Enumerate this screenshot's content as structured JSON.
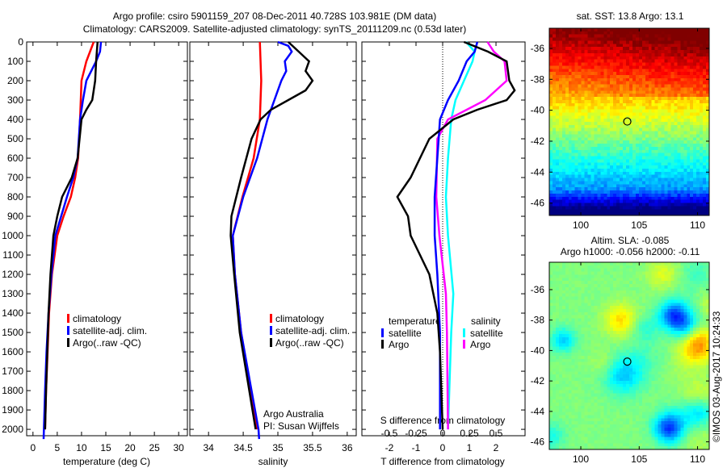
{
  "title_line1": "Argo profile: csiro 5901159_207 08-Dec-2011 40.728S 103.981E (DM data)",
  "title_line2": "Climatology: CARS2009. Satellite-adjusted climatology: synTS_20111209.nc (0.53d later)",
  "credit": "©IMOS 03-Aug-2017 10:24:33",
  "colors": {
    "climatology": "#ff0000",
    "satellite": "#0000ff",
    "argo": "#000000",
    "sal_satellite": "#00ffff",
    "sal_argo": "#ff00ff"
  },
  "chart_data": [
    {
      "type": "line",
      "title": "",
      "xlabel": "temperature (deg C)",
      "ylabel": "",
      "xlim": [
        -1.3,
        31.8
      ],
      "ylim": [
        0,
        2033
      ],
      "xticks": [
        0,
        5,
        10,
        15,
        20,
        25,
        30
      ],
      "yticks": [
        0,
        100,
        200,
        300,
        400,
        500,
        600,
        700,
        800,
        900,
        1000,
        1100,
        1200,
        1300,
        1400,
        1500,
        1600,
        1700,
        1800,
        1900,
        2000
      ],
      "legend": [
        "climatology",
        "satellite-adj. clim.",
        "Argo(..raw -QC)"
      ],
      "series": [
        {
          "name": "climatology",
          "depth": [
            0,
            100,
            200,
            400,
            600,
            700,
            800,
            900,
            1000,
            1200,
            1400,
            1600,
            1800,
            2000
          ],
          "values": [
            12.5,
            11,
            10,
            9.7,
            9.3,
            8.7,
            7.8,
            6.3,
            5,
            3.9,
            3.3,
            3.0,
            2.7,
            2.5
          ]
        },
        {
          "name": "satellite-adj. clim.",
          "depth": [
            0,
            50,
            100,
            200,
            300,
            400,
            600,
            700,
            800,
            900,
            1000,
            1200,
            1400,
            1600,
            1800,
            2050
          ],
          "values": [
            14,
            13.8,
            13,
            11,
            10.3,
            9.7,
            9.2,
            8.3,
            7,
            5.8,
            4.6,
            3.8,
            3.2,
            2.8,
            2.5,
            2.2
          ]
        },
        {
          "name": "Argo(..raw -QC)",
          "depth": [
            0,
            100,
            200,
            300,
            350,
            400,
            600,
            700,
            800,
            900,
            1000,
            1200,
            1400,
            1800,
            2000
          ],
          "values": [
            13.3,
            13,
            12.8,
            12.2,
            11,
            10,
            9.2,
            8,
            6,
            5,
            4.2,
            3.6,
            3.2,
            2.7,
            2.5
          ]
        }
      ]
    },
    {
      "type": "line",
      "xlabel": "salinity",
      "xlim": [
        33.73,
        36.13
      ],
      "ylim": [
        0,
        2033
      ],
      "xticks": [
        34,
        34.5,
        35,
        35.5,
        36
      ],
      "legend": [
        "climatology",
        "satellite-adj. clim.",
        "Argo(..raw -QC)"
      ],
      "annotation": [
        "Argo Australia",
        "PI: Susan Wijffels"
      ],
      "series": [
        {
          "name": "climatology",
          "depth": [
            0,
            200,
            400,
            600,
            800,
            1000,
            1200,
            1500,
            2000
          ],
          "values": [
            34.74,
            34.76,
            34.74,
            34.65,
            34.49,
            34.35,
            34.38,
            34.47,
            34.7
          ]
        },
        {
          "name": "satellite-adj. clim.",
          "depth": [
            0,
            20,
            50,
            100,
            150,
            200,
            300,
            400,
            600,
            800,
            1000,
            1200,
            1500,
            2000,
            2050
          ],
          "values": [
            35.0,
            35.15,
            35.2,
            35.1,
            35.12,
            35.05,
            34.95,
            34.85,
            34.7,
            34.5,
            34.35,
            34.38,
            34.47,
            34.72,
            34.73
          ]
        },
        {
          "name": "Argo(..raw -QC)",
          "depth": [
            0,
            50,
            100,
            150,
            200,
            250,
            300,
            350,
            400,
            500,
            700,
            900,
            1000,
            1200,
            1500,
            2000
          ],
          "values": [
            35.15,
            35.3,
            35.45,
            35.4,
            35.5,
            35.4,
            35.15,
            34.9,
            34.75,
            34.62,
            34.47,
            34.33,
            34.32,
            34.37,
            34.45,
            34.68
          ]
        }
      ]
    },
    {
      "type": "line",
      "xlabel": "T difference from climatology",
      "xlabel2": "S difference from climatology",
      "xlim": [
        -3.03,
        3.09
      ],
      "ylim": [
        0,
        2033
      ],
      "xticks": [
        -2,
        -1,
        0,
        1,
        2
      ],
      "xticks2": [
        -0.5,
        -0.25,
        0,
        0.25,
        0.5
      ],
      "s_to_t_scale": 4,
      "legend_headers": [
        "temperature",
        "salinity"
      ],
      "legend": [
        "satellite",
        "Argo",
        "satellite",
        "Argo"
      ],
      "series": [
        {
          "name": "T satellite",
          "var": "T",
          "depth": [
            0,
            50,
            100,
            200,
            300,
            400,
            600,
            800,
            1000,
            1200,
            1500,
            2000
          ],
          "values": [
            1.3,
            1.2,
            0.9,
            0.6,
            0.2,
            -0.1,
            -0.2,
            -0.3,
            -0.3,
            -0.2,
            -0.1,
            -0.1
          ]
        },
        {
          "name": "T Argo",
          "var": "T",
          "depth": [
            0,
            50,
            100,
            200,
            250,
            300,
            350,
            400,
            500,
            700,
            800,
            900,
            1000,
            1200,
            1400,
            1600,
            2000
          ],
          "values": [
            0.8,
            1.7,
            2.4,
            2.5,
            2.7,
            2.4,
            1.3,
            0.4,
            -0.5,
            -1.2,
            -1.7,
            -1.3,
            -1.2,
            -0.5,
            -0.2,
            -0.1,
            0
          ]
        },
        {
          "name": "S satellite",
          "var": "S",
          "depth": [
            0,
            50,
            100,
            200,
            300,
            400,
            600,
            800,
            1000,
            1300,
            1500,
            2000
          ],
          "values": [
            0.22,
            0.3,
            0.28,
            0.2,
            0.12,
            0.08,
            0.05,
            0.03,
            0.05,
            0.1,
            0.08,
            0.05
          ]
        },
        {
          "name": "S Argo",
          "var": "S",
          "depth": [
            0,
            50,
            100,
            200,
            300,
            400,
            500,
            800,
            1000,
            1300,
            1500,
            2000
          ],
          "values": [
            0.42,
            0.48,
            0.58,
            0.6,
            0.4,
            0.05,
            -0.05,
            -0.06,
            -0.03,
            0.03,
            0.04,
            0.05
          ]
        }
      ]
    },
    {
      "type": "heatmap",
      "title": "sat. SST: 13.8 Argo: 13.1",
      "xlim": [
        97.3,
        111
      ],
      "ylim": [
        -46.8,
        -34.7
      ],
      "xticks": [
        100,
        105,
        110
      ],
      "yticks": [
        -36,
        -38,
        -40,
        -42,
        -44,
        -46
      ],
      "marker": {
        "lon": 103.981,
        "lat": -40.728
      }
    },
    {
      "type": "heatmap",
      "title": "Altim. SLA: -0.085",
      "subtitle": "Argo h1000: -0.056 h2000: -0.11",
      "xlim": [
        97.3,
        111
      ],
      "ylim": [
        -46.5,
        -34.2
      ],
      "xticks": [
        100,
        105,
        110
      ],
      "yticks": [
        -36,
        -38,
        -40,
        -42,
        -44,
        -46
      ],
      "marker": {
        "lon": 103.981,
        "lat": -40.728
      }
    }
  ]
}
